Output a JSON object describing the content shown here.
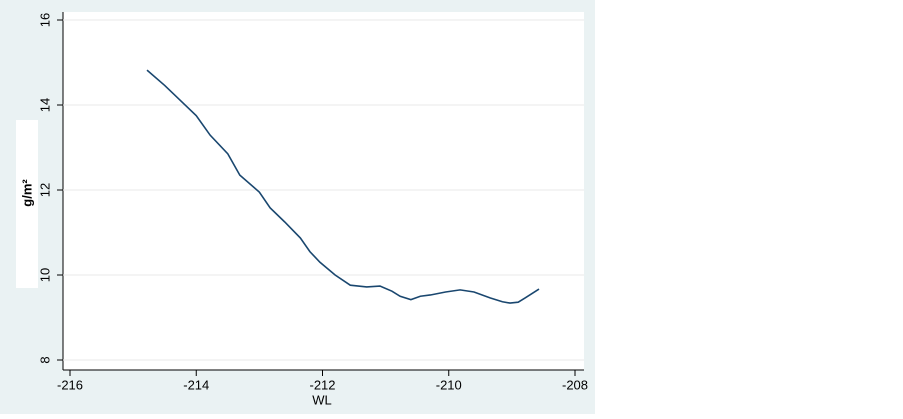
{
  "chart_data": {
    "type": "line",
    "x_label": "WL",
    "y_label": "g/m²",
    "x": [
      -214.78,
      -214.5,
      -214.26,
      -214.0,
      -213.78,
      -213.5,
      -213.31,
      -213.0,
      -212.83,
      -212.6,
      -212.35,
      -212.2,
      -212.04,
      -211.8,
      -211.56,
      -211.3,
      -211.09,
      -210.9,
      -210.77,
      -210.6,
      -210.45,
      -210.29,
      -210.05,
      -209.82,
      -209.6,
      -209.34,
      -209.15,
      -209.03,
      -208.9,
      -208.79,
      -208.57
    ],
    "series": [
      {
        "name": "g/m²",
        "color": "#1a476f",
        "values": [
          14.82,
          14.46,
          14.12,
          13.75,
          13.29,
          12.85,
          12.35,
          11.95,
          11.58,
          11.25,
          10.87,
          10.55,
          10.3,
          10.0,
          9.76,
          9.72,
          9.74,
          9.62,
          9.5,
          9.42,
          9.5,
          9.53,
          9.6,
          9.65,
          9.6,
          9.46,
          9.37,
          9.34,
          9.36,
          9.46,
          9.67
        ]
      }
    ],
    "xlim": [
      -216,
      -208
    ],
    "xticks": [
      -216,
      -214,
      -212,
      -210,
      -208
    ],
    "ylim": [
      8,
      16
    ],
    "yticks": [
      8,
      10,
      12,
      14,
      16
    ],
    "grid": true
  }
}
